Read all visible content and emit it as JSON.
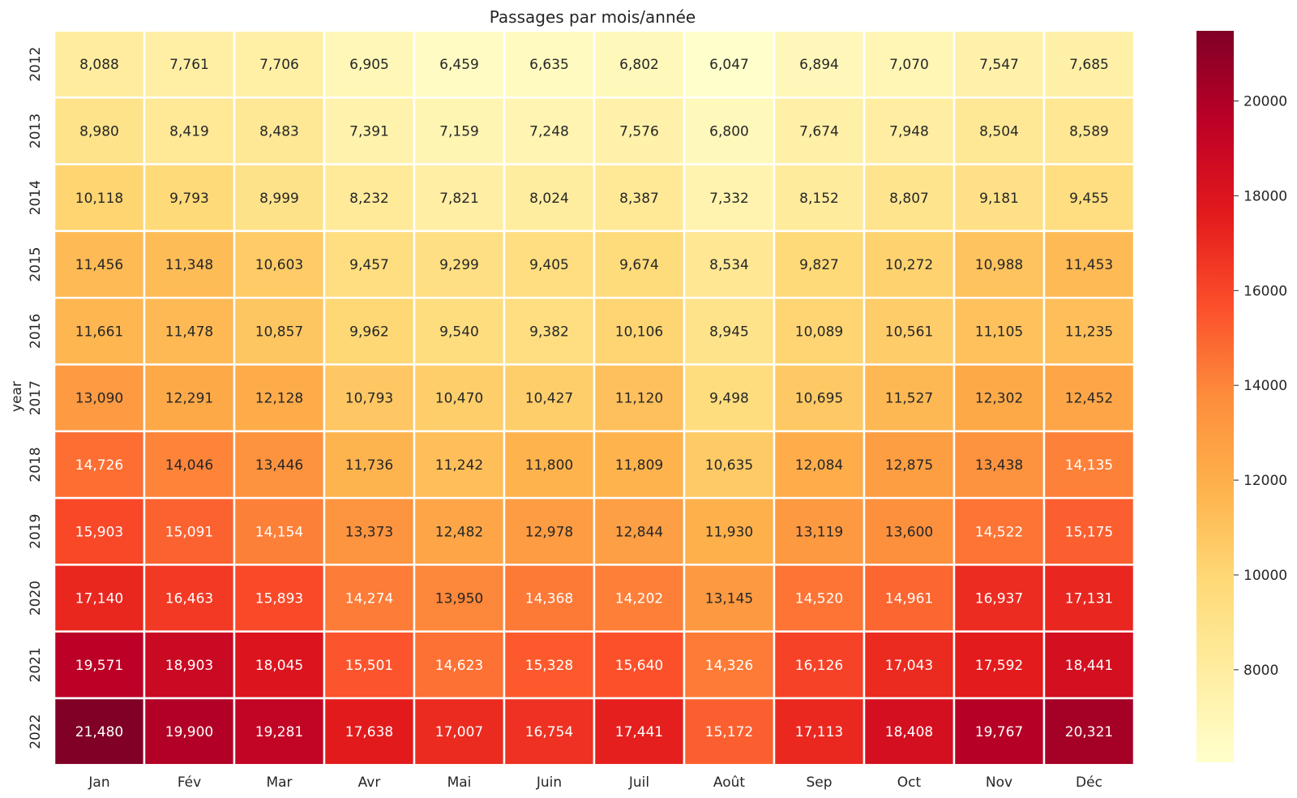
{
  "chart_data": {
    "type": "heatmap",
    "title": "Passages par mois/année",
    "xlabel": "",
    "ylabel": "year",
    "x": [
      "Jan",
      "Fév",
      "Mar",
      "Avr",
      "Mai",
      "Juin",
      "Juil",
      "Août",
      "Sep",
      "Oct",
      "Nov",
      "Déc"
    ],
    "y": [
      "2012",
      "2013",
      "2014",
      "2015",
      "2016",
      "2017",
      "2018",
      "2019",
      "2020",
      "2021",
      "2022"
    ],
    "values": [
      [
        8088,
        7761,
        7706,
        6905,
        6459,
        6635,
        6802,
        6047,
        6894,
        7070,
        7547,
        7685
      ],
      [
        8980,
        8419,
        8483,
        7391,
        7159,
        7248,
        7576,
        6800,
        7674,
        7948,
        8504,
        8589
      ],
      [
        10118,
        9793,
        8999,
        8232,
        7821,
        8024,
        8387,
        7332,
        8152,
        8807,
        9181,
        9455
      ],
      [
        11456,
        11348,
        10603,
        9457,
        9299,
        9405,
        9674,
        8534,
        9827,
        10272,
        10988,
        11453
      ],
      [
        11661,
        11478,
        10857,
        9962,
        9540,
        9382,
        10106,
        8945,
        10089,
        10561,
        11105,
        11235
      ],
      [
        13090,
        12291,
        12128,
        10793,
        10470,
        10427,
        11120,
        9498,
        10695,
        11527,
        12302,
        12452
      ],
      [
        14726,
        14046,
        13446,
        11736,
        11242,
        11800,
        11809,
        10635,
        12084,
        12875,
        13438,
        14135
      ],
      [
        15903,
        15091,
        14154,
        13373,
        12482,
        12978,
        12844,
        11930,
        13119,
        13600,
        14522,
        15175
      ],
      [
        17140,
        16463,
        15893,
        14274,
        13950,
        14368,
        14202,
        13145,
        14520,
        14961,
        16937,
        17131
      ],
      [
        19571,
        18903,
        18045,
        15501,
        14623,
        15328,
        15640,
        14326,
        16126,
        17043,
        17592,
        18441
      ],
      [
        21480,
        19900,
        19281,
        17638,
        17007,
        16754,
        17441,
        15172,
        17113,
        18408,
        19767,
        20321
      ]
    ],
    "colormap": "YlOrRd",
    "vmin": 6047,
    "vmax": 21480,
    "annot_format": "thousands-comma",
    "colorbar": {
      "ticks": [
        8000,
        10000,
        12000,
        14000,
        16000,
        18000,
        20000
      ],
      "tick_labels": [
        "8000",
        "10000",
        "12000",
        "14000",
        "16000",
        "18000",
        "20000"
      ]
    },
    "grid": false,
    "cell_separator_color": "#ffffff"
  }
}
